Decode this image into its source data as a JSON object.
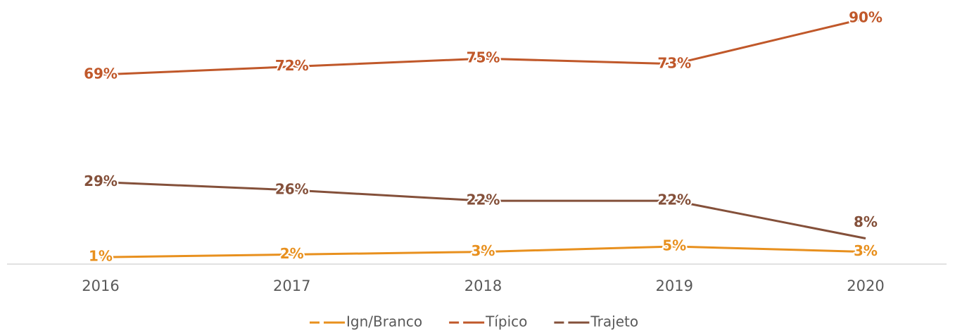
{
  "chart_data": {
    "type": "line",
    "x": [
      2016,
      2017,
      2018,
      2019,
      2020
    ],
    "series": [
      {
        "name": "Ign/Branco",
        "color": "#e8901e",
        "values": [
          1,
          2,
          3,
          5,
          3
        ],
        "value_labels": [
          "1%",
          "2%",
          "3%",
          "5%",
          "3%"
        ]
      },
      {
        "name": "Típico",
        "color": "#c0582a",
        "values": [
          69,
          72,
          75,
          73,
          90
        ],
        "value_labels": [
          "69%",
          "72%",
          "75%",
          "73%",
          "90%"
        ]
      },
      {
        "name": "Trajeto",
        "color": "#84503a",
        "values": [
          29,
          26,
          22,
          22,
          8
        ],
        "value_labels": [
          "29%",
          "26%",
          "22%",
          "22%",
          "8%"
        ]
      }
    ],
    "ylim": [
      0,
      90
    ],
    "legend": "bottom"
  }
}
